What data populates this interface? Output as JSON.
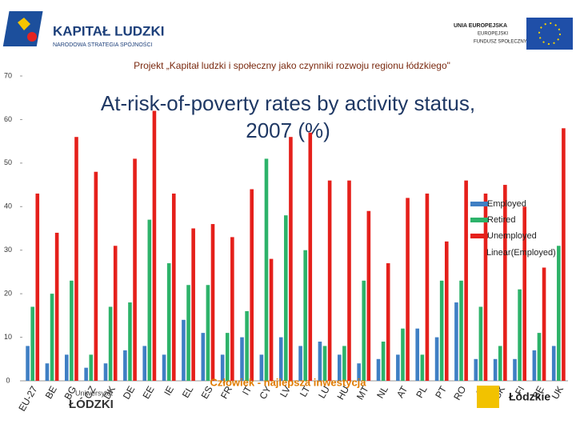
{
  "header": {
    "logo_title": "KAPITAŁ LUDZKI",
    "logo_subtitle": "NARODOWA STRATEGIA SPÓJNOŚCI",
    "eu_title": "UNIA EUROPEJSKA",
    "eu_line2": "EUROPEJSKI",
    "eu_line3": "FUNDUSZ SPOŁECZNY",
    "project": "Projekt „Kapitał ludzki i społeczny jako czynniki rozwoju regionu łódzkiego\""
  },
  "chart_data": {
    "type": "bar",
    "title": "At-risk-of-poverty rates by activity status, 2007 (%)",
    "categories": [
      "EU-27",
      "BE",
      "BG",
      "CZ",
      "DK",
      "DE",
      "EE",
      "IE",
      "EL",
      "ES",
      "FR",
      "IT",
      "CY",
      "LV",
      "LT",
      "LU",
      "HU",
      "MT",
      "NL",
      "AT",
      "PL",
      "PT",
      "RO",
      "SI",
      "SK",
      "FI",
      "SE",
      "UK"
    ],
    "series": [
      {
        "name": "Employed",
        "color": "#3f7fc4",
        "values": [
          8,
          4,
          6,
          3,
          4,
          7,
          8,
          6,
          14,
          11,
          6,
          10,
          6,
          10,
          8,
          9,
          6,
          4,
          5,
          6,
          12,
          10,
          18,
          5,
          5,
          5,
          7,
          8
        ]
      },
      {
        "name": "Retired",
        "color": "#2db36a",
        "values": [
          17,
          20,
          23,
          6,
          17,
          18,
          37,
          27,
          22,
          22,
          11,
          16,
          51,
          38,
          30,
          8,
          8,
          23,
          9,
          12,
          6,
          23,
          23,
          17,
          8,
          21,
          11,
          31
        ]
      },
      {
        "name": "Unemployed",
        "color": "#e5201b",
        "values": [
          43,
          34,
          56,
          48,
          31,
          51,
          62,
          43,
          35,
          36,
          33,
          44,
          28,
          56,
          57,
          46,
          46,
          39,
          27,
          42,
          43,
          32,
          46,
          43,
          45,
          40,
          26,
          58
        ]
      }
    ],
    "trendline_label": "Linear(Employed)",
    "ylim": [
      0,
      70
    ],
    "yticks": [
      0,
      10,
      20,
      30,
      40,
      50,
      60,
      70
    ],
    "grid": false
  },
  "footer": {
    "university_top": "Uniwersytet",
    "university": "ŁÓDZKI",
    "slogan": "Człowiek - najlepsza inwestycja",
    "region": "Łódzkie"
  }
}
